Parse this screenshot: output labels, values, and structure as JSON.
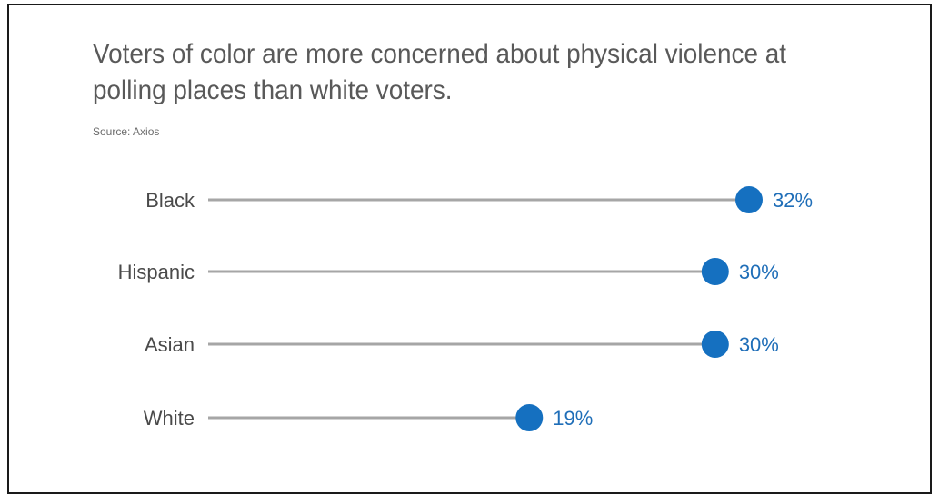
{
  "chart_data": {
    "type": "dot",
    "title": "Voters of color are more concerned about physical violence at polling places than white voters.",
    "source": "Source: Axios",
    "categories": [
      "Black",
      "Hispanic",
      "Asian",
      "White"
    ],
    "values": [
      32,
      30,
      30,
      19
    ],
    "value_labels": [
      "32%",
      "30%",
      "30%",
      "19%"
    ],
    "xlim": [
      0,
      32
    ],
    "grid": false,
    "colors": {
      "dot": "#1570c0",
      "line": "#a6a6a6",
      "value_text": "#1f6eb8",
      "label_text": "#4a4a4a",
      "title_text": "#595959"
    }
  }
}
